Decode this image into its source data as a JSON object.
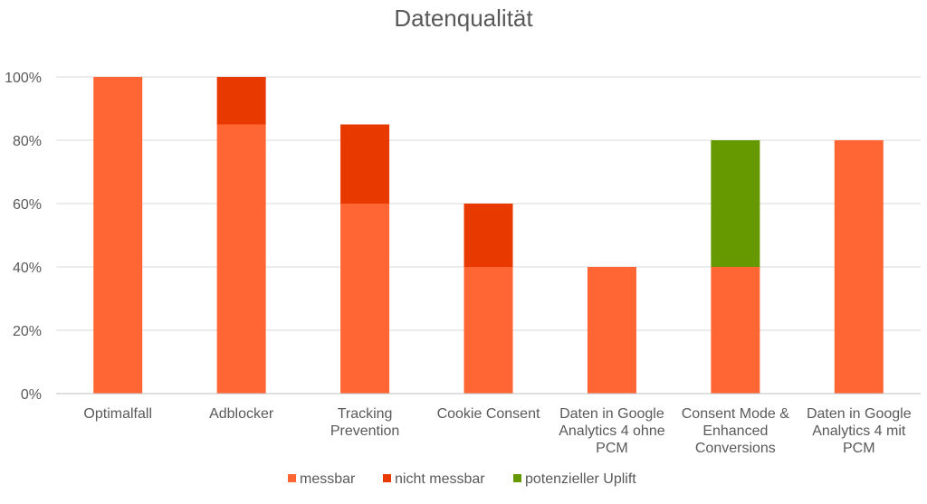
{
  "chart_data": {
    "type": "bar",
    "stacked": true,
    "title": "Datenqualität",
    "xlabel": "",
    "ylabel": "",
    "ylim": [
      0,
      100
    ],
    "yticks": [
      "0%",
      "20%",
      "40%",
      "60%",
      "80%",
      "100%"
    ],
    "ytick_values": [
      0,
      20,
      40,
      60,
      80,
      100
    ],
    "grid": true,
    "legend_position": "bottom",
    "categories": [
      [
        "Optimalfall"
      ],
      [
        "Adblocker"
      ],
      [
        "Tracking",
        "Prevention"
      ],
      [
        "Cookie Consent"
      ],
      [
        "Daten in Google",
        "Analytics 4 ohne",
        "PCM"
      ],
      [
        "Consent Mode &",
        "Enhanced",
        "Conversions"
      ],
      [
        "Daten in Google",
        "Analytics 4 mit",
        "PCM"
      ]
    ],
    "series": [
      {
        "name": "messbar",
        "color": "#ff6633",
        "values": [
          100,
          85,
          60,
          40,
          40,
          40,
          80
        ]
      },
      {
        "name": "nicht messbar",
        "color": "#e83a00",
        "values": [
          0,
          15,
          25,
          20,
          0,
          0,
          0
        ]
      },
      {
        "name": "potenzieller Uplift",
        "color": "#669900",
        "values": [
          0,
          0,
          0,
          0,
          0,
          40,
          0
        ]
      }
    ]
  }
}
